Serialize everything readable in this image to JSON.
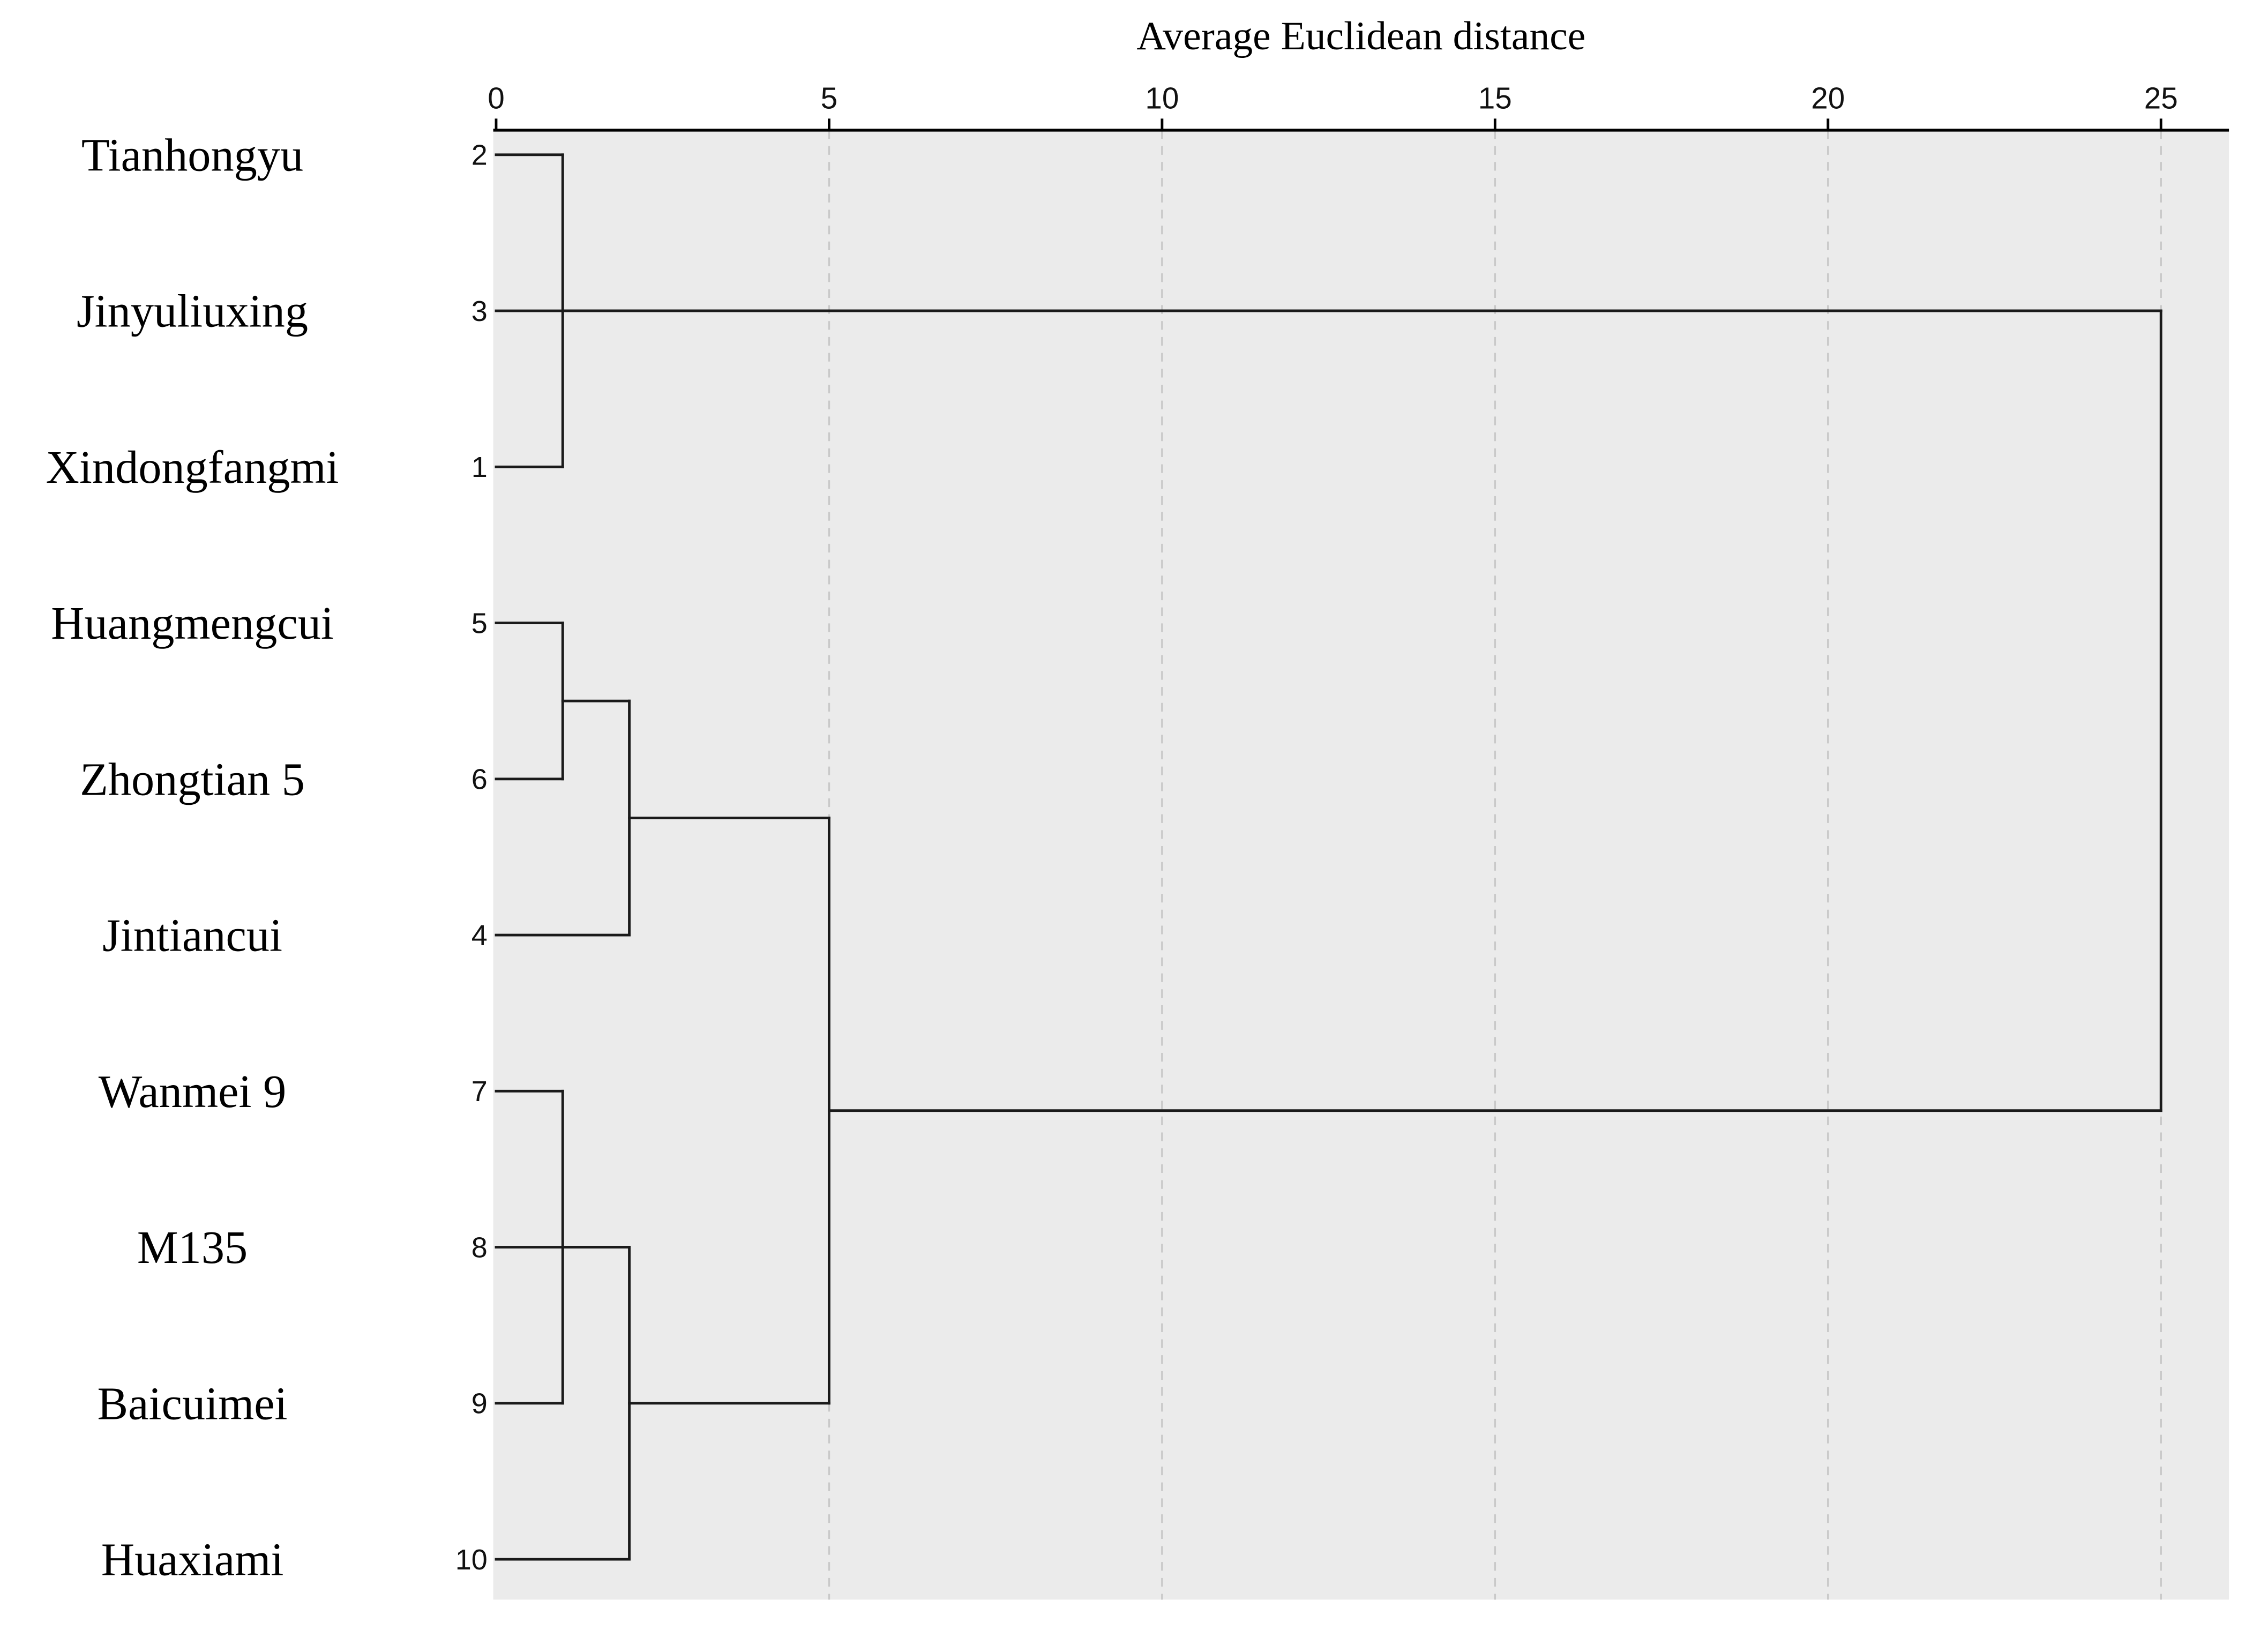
{
  "chart_data": {
    "type": "dendrogram",
    "orientation": "horizontal",
    "title": "Average Euclidean distance",
    "x_axis": {
      "min": 0,
      "max": 25,
      "ticks": [
        0,
        5,
        10,
        15,
        20,
        25
      ],
      "position": "top",
      "gridlines": "dashed"
    },
    "leaves": [
      {
        "name": "Tianhongyu",
        "num": "2"
      },
      {
        "name": "Jinyuliuxing",
        "num": "3"
      },
      {
        "name": "Xindongfangmi",
        "num": "1"
      },
      {
        "name": "Huangmengcui",
        "num": "5"
      },
      {
        "name": "Zhongtian 5",
        "num": "6"
      },
      {
        "name": "Jintiancui",
        "num": "4"
      },
      {
        "name": "Wanmei 9",
        "num": "7"
      },
      {
        "name": "M135",
        "num": "8"
      },
      {
        "name": "Baicuimei",
        "num": "9"
      },
      {
        "name": "Huaxiami",
        "num": "10"
      }
    ],
    "merges": [
      {
        "a": "leaf:0",
        "b": "leaf:2",
        "height": 1
      },
      {
        "a": "merge:0",
        "b": "leaf:1",
        "height": 25
      },
      {
        "a": "leaf:3",
        "b": "leaf:4",
        "height": 1
      },
      {
        "a": "merge:2",
        "b": "leaf:5",
        "height": 2
      },
      {
        "a": "leaf:6",
        "b": "leaf:8",
        "height": 1
      },
      {
        "a": "merge:4",
        "b": "leaf:7",
        "height": 2
      },
      {
        "a": "merge:5",
        "b": "leaf:9",
        "height": 2
      },
      {
        "a": "merge:3",
        "b": "merge:6",
        "height": 5
      },
      {
        "a": "merge:1",
        "b": "merge:7",
        "height": 25
      }
    ],
    "colors": {
      "plot_bg": "#ebebeb",
      "line": "#1a1a1a",
      "grid": "#c9c9c9",
      "text": "#000000"
    }
  }
}
